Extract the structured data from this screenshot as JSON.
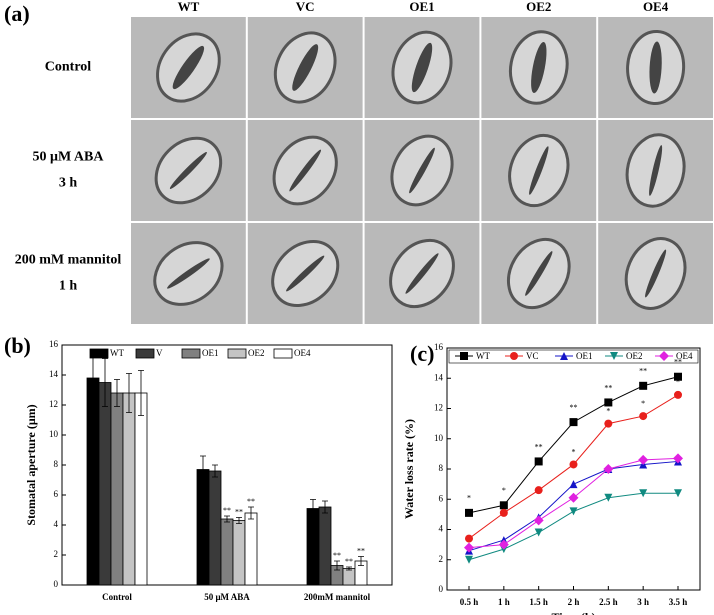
{
  "panel_labels": [
    "(a)",
    "(b)",
    "(c)"
  ],
  "micrographs": {
    "columns": [
      "WT",
      "VC",
      "OE1",
      "OE2",
      "OE4"
    ],
    "rows": [
      [
        "Control"
      ],
      [
        "50 μM ABA",
        "3 h"
      ],
      [
        "200 mM mannitol",
        "1 h"
      ]
    ]
  },
  "chart_data": [
    {
      "type": "bar",
      "ylabel": "Stomatal aperture (μm)",
      "categories": [
        "Control",
        "50 μM ABA",
        "200mM mannitol"
      ],
      "ylim": [
        0,
        16
      ],
      "yticks": [
        0,
        2,
        4,
        6,
        8,
        10,
        12,
        14,
        16
      ],
      "series": [
        {
          "name": "WT",
          "color": "#000000",
          "values": [
            13.8,
            7.7,
            5.1
          ],
          "errors": [
            1.5,
            0.9,
            0.6
          ],
          "significance": [
            null,
            null,
            null
          ]
        },
        {
          "name": "V",
          "color": "#3a3a3a",
          "values": [
            13.5,
            7.6,
            5.2
          ],
          "errors": [
            1.6,
            0.4,
            0.4
          ],
          "significance": [
            null,
            null,
            null
          ]
        },
        {
          "name": "OE1",
          "color": "#808080",
          "values": [
            12.8,
            4.4,
            1.3
          ],
          "errors": [
            0.9,
            0.2,
            0.3
          ],
          "significance": [
            null,
            "**",
            "**"
          ]
        },
        {
          "name": "OE2",
          "color": "#c4c4c4",
          "values": [
            12.8,
            4.3,
            1.1
          ],
          "errors": [
            1.3,
            0.2,
            0.1
          ],
          "significance": [
            null,
            "**",
            "**"
          ]
        },
        {
          "name": "OE4",
          "color": "#ffffff",
          "values": [
            12.8,
            4.8,
            1.6
          ],
          "errors": [
            1.5,
            0.4,
            0.3
          ],
          "significance": [
            null,
            "**",
            "**"
          ]
        }
      ]
    },
    {
      "type": "line",
      "xlabel": "Time (h)",
      "ylabel": "Water loss rate (%)",
      "categories": [
        "0.5 h",
        "1 h",
        "1.5 h",
        "2 h",
        "2.5 h",
        "3 h",
        "3.5 h"
      ],
      "ylim": [
        0,
        16
      ],
      "yticks": [
        0,
        2,
        4,
        6,
        8,
        10,
        12,
        14,
        16
      ],
      "series": [
        {
          "name": "WT",
          "color": "#000000",
          "marker": "square",
          "values": [
            5.1,
            5.6,
            8.5,
            11.1,
            12.4,
            13.5,
            14.1
          ],
          "significance": [
            "*",
            "*",
            "**",
            "**",
            "**",
            "**",
            "**"
          ]
        },
        {
          "name": "VC",
          "color": "#e8201c",
          "marker": "circle",
          "values": [
            3.4,
            5.1,
            6.6,
            8.3,
            11.0,
            11.5,
            12.9
          ],
          "significance": [
            null,
            null,
            null,
            "*",
            "*",
            "*",
            "*"
          ]
        },
        {
          "name": "OE1",
          "color": "#1414c8",
          "marker": "triangle",
          "values": [
            2.6,
            3.3,
            4.8,
            7.0,
            8.0,
            8.3,
            8.5
          ],
          "significance": [
            null,
            null,
            null,
            null,
            null,
            null,
            null
          ]
        },
        {
          "name": "OE2",
          "color": "#108a80",
          "marker": "down",
          "values": [
            2.0,
            2.7,
            3.8,
            5.2,
            6.1,
            6.4,
            6.4
          ],
          "significance": [
            null,
            null,
            null,
            null,
            null,
            null,
            null
          ]
        },
        {
          "name": "OE4",
          "color": "#e020e0",
          "marker": "diamond",
          "values": [
            2.8,
            3.0,
            4.6,
            6.1,
            8.0,
            8.6,
            8.7
          ],
          "significance": [
            null,
            null,
            null,
            null,
            null,
            null,
            null
          ]
        }
      ]
    }
  ]
}
